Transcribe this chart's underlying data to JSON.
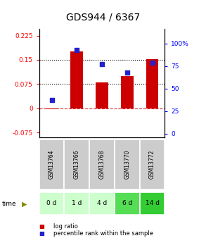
{
  "title": "GDS944 / 6367",
  "categories": [
    "GSM13764",
    "GSM13766",
    "GSM13768",
    "GSM13770",
    "GSM13772"
  ],
  "time_labels": [
    "0 d",
    "1 d",
    "4 d",
    "6 d",
    "14 d"
  ],
  "log_ratio": [
    -0.002,
    0.175,
    0.08,
    0.1,
    0.153
  ],
  "percentile_rank": [
    37,
    93,
    77,
    68,
    79
  ],
  "bar_color": "#cc0000",
  "dot_color": "#2222cc",
  "ylim_left": [
    -0.09,
    0.245
  ],
  "ylim_right": [
    -4,
    116
  ],
  "yticks_left": [
    -0.075,
    0,
    0.075,
    0.15,
    0.225
  ],
  "ytick_labels_left": [
    "-0.075",
    "0",
    "0.075",
    "0.15",
    "0.225"
  ],
  "yticks_right": [
    0,
    25,
    50,
    75,
    100
  ],
  "ytick_labels_right": [
    "0",
    "25",
    "50",
    "75",
    "100%"
  ],
  "hline_y_left": [
    0.075,
    0.15
  ],
  "time_row_colors": [
    "#ccffcc",
    "#ccffcc",
    "#ccffcc",
    "#55dd55",
    "#33cc33"
  ],
  "gsm_row_color": "#cccccc",
  "legend_log_color": "#cc0000",
  "legend_pct_color": "#2222cc",
  "title_fontsize": 10,
  "tick_fontsize": 6.5,
  "bar_width": 0.5
}
